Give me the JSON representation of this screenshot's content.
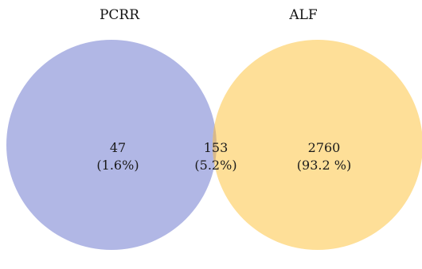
{
  "venn": {
    "sets": [
      {
        "label": "PCRR",
        "color": "#b1b7e5"
      },
      {
        "label": "ALF",
        "color": "#fedf98"
      }
    ],
    "overlap_color": "#d7b88a",
    "regions": {
      "left_only": {
        "count": "47",
        "percent": "(1.6%)"
      },
      "intersection": {
        "count": "153",
        "percent": "(5.2%)"
      },
      "right_only": {
        "count": "2760",
        "percent": "(93.2 %)"
      }
    }
  }
}
